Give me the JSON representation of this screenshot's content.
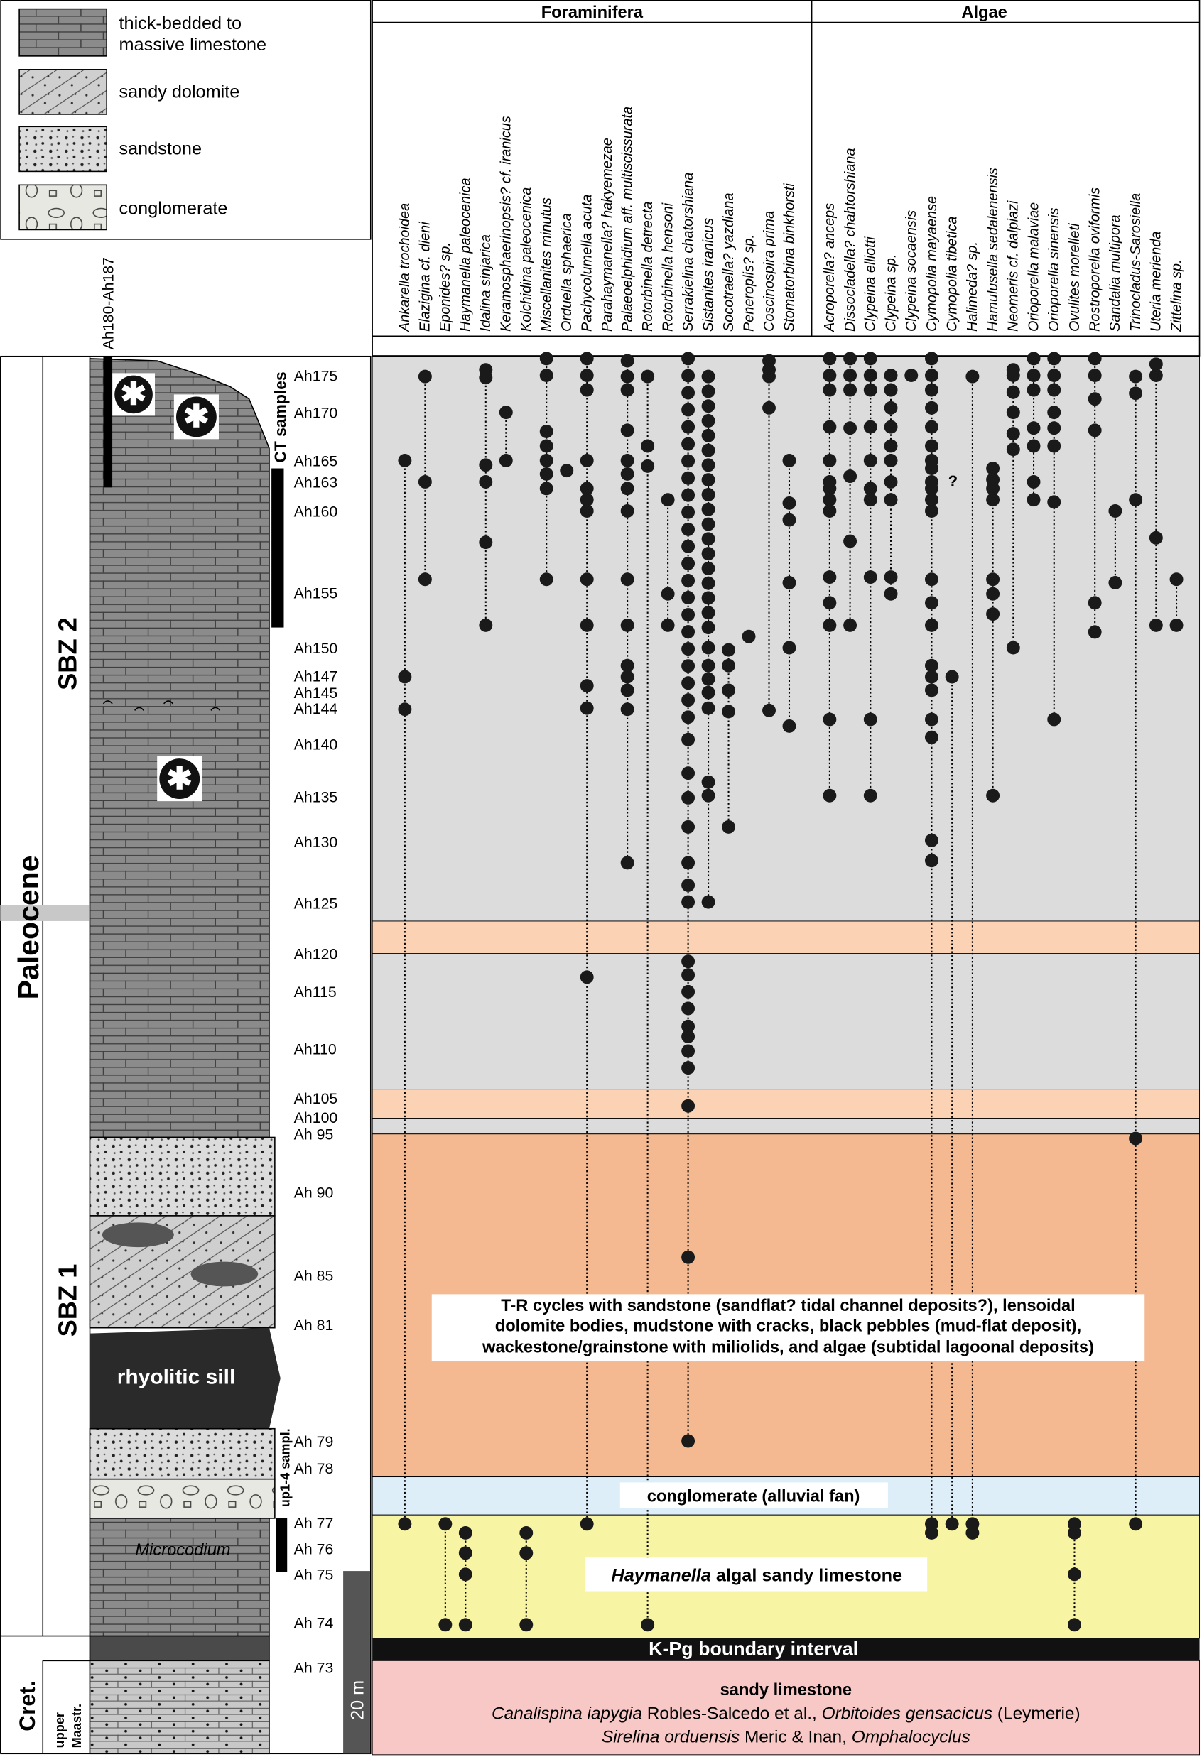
{
  "legend": [
    {
      "label_lines": [
        "thick-bedded to",
        "massive limestone"
      ]
    },
    {
      "label_lines": [
        "sandy dolomite"
      ]
    },
    {
      "label_lines": [
        "sandstone"
      ]
    },
    {
      "label_lines": [
        "conglomerate"
      ]
    }
  ],
  "groups": {
    "foraminifera": {
      "title": "Foraminifera",
      "taxa": [
        "Ankarella trochoidea",
        "Elazigina cf. dieni",
        "Eponides? sp.",
        "Haymanella paleocenica",
        "Idalina sinjarica",
        "Keramosphaerinopsis? cf. iranicus",
        "Kolchidina paleocenica",
        "Miscellanites minutus",
        "Orduella sphaerica",
        "Pachycolumella acuta",
        "Parahaymanella? hakyemezae",
        "Palaeoelphidium aff. multiscissurata",
        "Rotorbinella detrecta",
        "Rotorbinella hensoni",
        "Serrakielina chatorshiana",
        "Sistanites iranicus",
        "Socotraella? yazdiana",
        "Peneroplis? sp.",
        "Coscinospira prima",
        "Stomatorbina binkhorsti"
      ]
    },
    "algae": {
      "title": "Algae",
      "taxa": [
        "Acroporella? anceps",
        "Dissocladella? chahtorshiana",
        "Clypeina elliotti",
        "Clypeina sp.",
        "Clypeina socaensis",
        "Cymopolia mayaense",
        "Cymopolia tibetica",
        "Halimeda? sp.",
        "Hamulusella sedalenensis",
        "Neomeris cf. dalpiazi",
        "Orioporella malaviae",
        "Orioporella sinensis",
        "Ovulites morelleti",
        "Rostroporella oviformis",
        "Sandalia multipora",
        "Trinocladus-Sarosiella",
        "Uteria merienda",
        "Zittelina sp."
      ]
    }
  },
  "samples": [
    "Ah175",
    "Ah170",
    "Ah165",
    "Ah163",
    "Ah160",
    "Ah155",
    "Ah150",
    "Ah147",
    "Ah145",
    "Ah144",
    "Ah140",
    "Ah135",
    "Ah130",
    "Ah125",
    "Ah120",
    "Ah115",
    "Ah110",
    "Ah105",
    "Ah100",
    "Ah 95",
    "Ah 90",
    "Ah 85",
    "Ah 81",
    "Ah 79",
    "Ah 78",
    "Ah 77",
    "Ah 76",
    "Ah 75",
    "Ah 74",
    "Ah 73"
  ],
  "column": {
    "period": "Paleocene",
    "cretaceous": "Cret.",
    "stage_lines": [
      "upper",
      "Maastr."
    ],
    "zone_upper": "SBZ 2",
    "zone_lower": "SBZ 1",
    "sample_range": "Ah180-Ah187",
    "ct_samples": "CT samples",
    "up_samples": "up1-4 sampl.",
    "scale": "20 m",
    "sill": "rhyolitic sill",
    "microcodium": "Microcodium",
    "query": "?"
  },
  "facies": {
    "tr_cycles": [
      "T-R cycles with sandstone (sandflat? tidal channel deposits?), lensoidal",
      "dolomite bodies,  mudstone with cracks,  black pebbles (mud-flat deposit),",
      "wackestone/grainstone with miliolids, and algae (subtidal lagoonal deposits)"
    ],
    "conglomerate": "conglomerate (alluvial fan)",
    "haymanella": [
      {
        "text": "Haymanella",
        "italic": true
      },
      {
        "text": " algal sandy limestone",
        "italic": false
      }
    ],
    "kpg": "K-Pg boundary interval",
    "sandy_limestone": {
      "title": "sandy limestone",
      "lines": [
        [
          {
            "text": "Canalispina iapygia",
            "italic": true
          },
          {
            "text": " Robles-Salcedo et al., ",
            "italic": false
          },
          {
            "text": "Orbitoides gensacicus",
            "italic": true
          },
          {
            "text": " (Leymerie)",
            "italic": false
          }
        ],
        [
          {
            "text": "Sirelina orduensis",
            "italic": true
          },
          {
            "text": " Meric & Inan, ",
            "italic": false
          },
          {
            "text": "Omphalocyclus",
            "italic": true
          }
        ]
      ]
    }
  }
}
